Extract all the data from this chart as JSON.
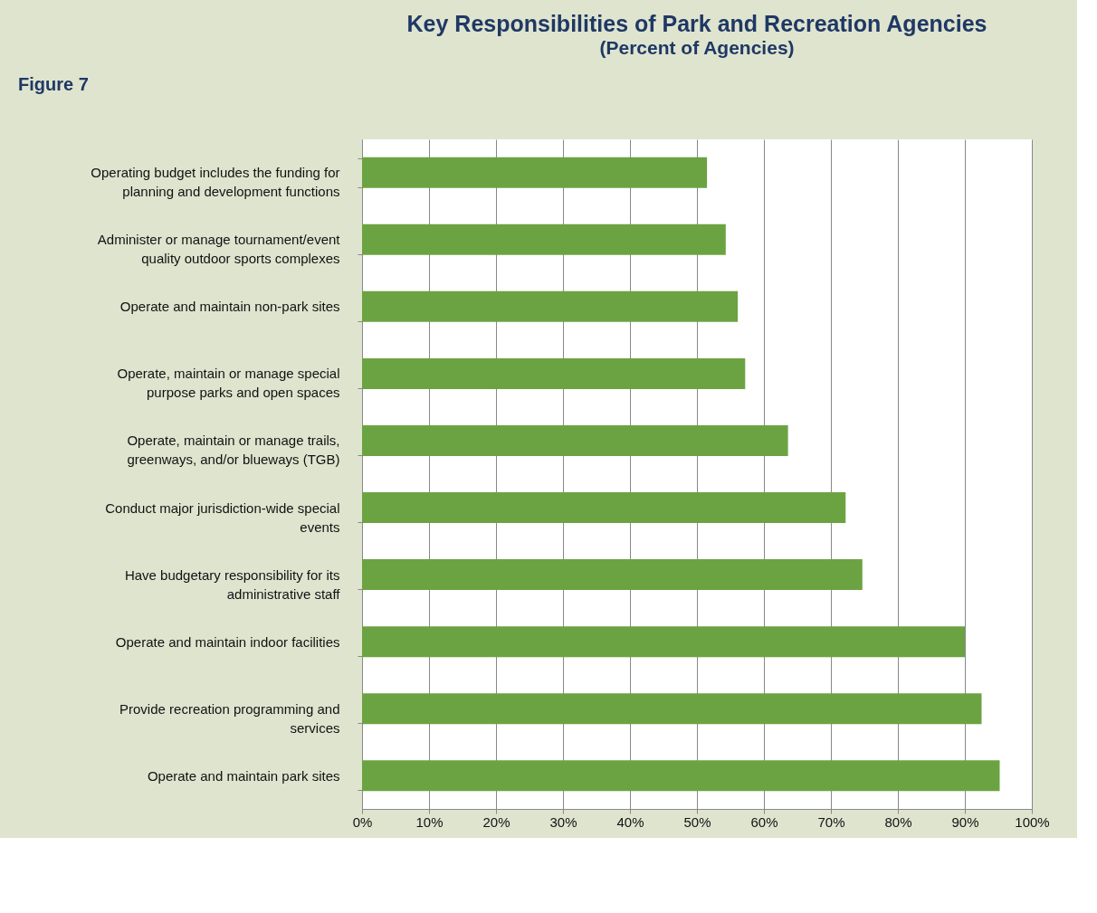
{
  "chart_data": {
    "type": "bar",
    "orientation": "horizontal",
    "title": "Key Responsibilities of Park and Recreation Agencies",
    "subtitle": "(Percent of Agencies)",
    "annotations": [
      "Figure 7"
    ],
    "categories": [
      "Operating budget includes the funding for planning and development functions",
      "Administer or manage tournament/event quality outdoor sports complexes",
      "Operate and maintain non-park sites",
      "Operate, maintain or manage special purpose parks and open spaces",
      "Operate, maintain or manage trails, greenways, and/or blueways (TGB)",
      "Conduct major jurisdiction-wide special events",
      "Have budgetary responsibility for its administrative staff",
      "Operate and maintain indoor facilities",
      "Provide recreation programming and services",
      "Operate and maintain park sites"
    ],
    "values": [
      51.5,
      54.3,
      56.1,
      57.2,
      63.6,
      72.2,
      74.7,
      90.0,
      92.5,
      95.2
    ],
    "color": "#6ca342",
    "xlim": [
      0,
      100
    ],
    "xticks": [
      {
        "value": 0,
        "label": "0%"
      },
      {
        "value": 10,
        "label": "10%"
      },
      {
        "value": 20,
        "label": "20%"
      },
      {
        "value": 30,
        "label": "30%"
      },
      {
        "value": 40,
        "label": "40%"
      },
      {
        "value": 50,
        "label": "50%"
      },
      {
        "value": 60,
        "label": "60%"
      },
      {
        "value": 70,
        "label": "70%"
      },
      {
        "value": 80,
        "label": "80%"
      },
      {
        "value": 90,
        "label": "90%"
      },
      {
        "value": 100,
        "label": "100%"
      }
    ],
    "grid": "x"
  }
}
